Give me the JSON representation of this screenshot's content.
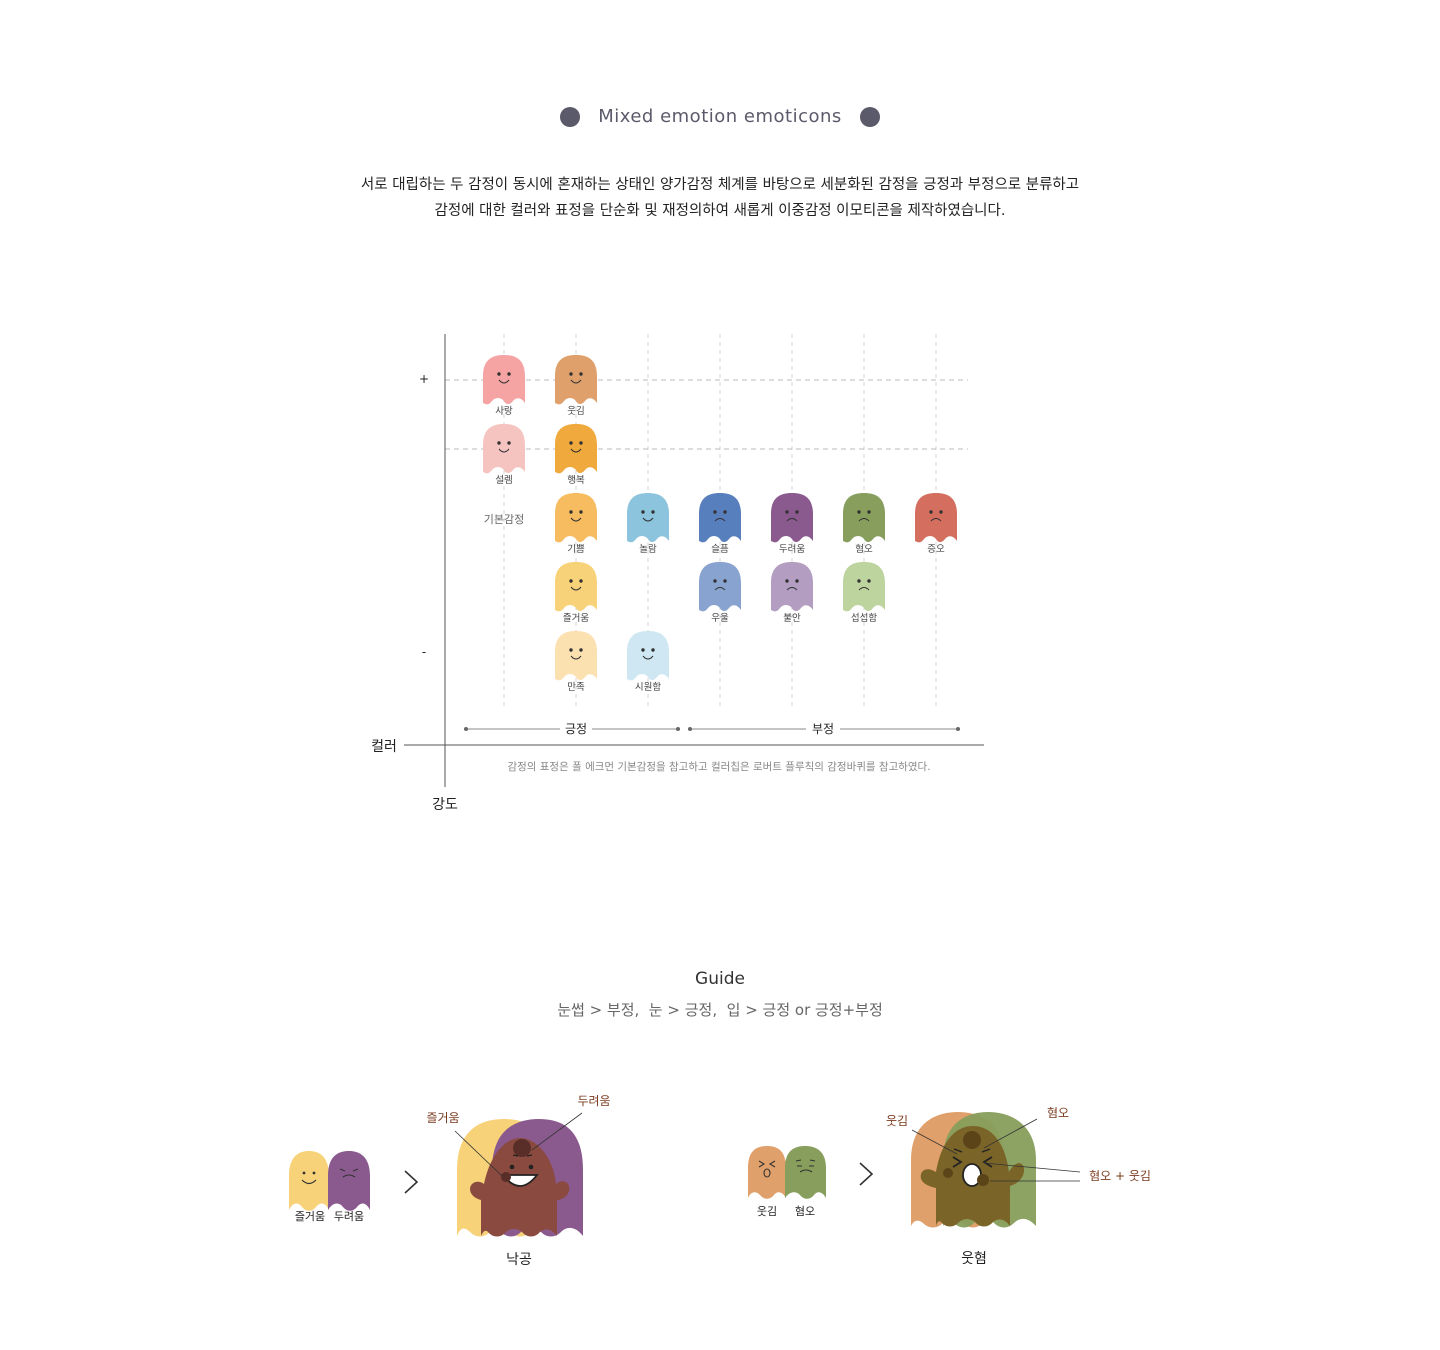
{
  "header": {
    "title": "Mixed emotion emoticons",
    "dot_color": "#5b5a6a"
  },
  "description": {
    "line1": "서로 대립하는 두 감정이 동시에 혼재하는 상태인 양가감정 체계를 바탕으로 세분화된 감정을 긍정과 부정으로 분류하고",
    "line2": "감정에 대한 컬러와 표정을 단순화 및 재정의하여 새롭게 이중감정 이모티콘을 제작하였습니다."
  },
  "chart": {
    "y_plus": "+",
    "y_minus": "-",
    "y_label": "강도",
    "x_label": "컬러",
    "basic_emotion_label": "기본감정",
    "positive_label": "긍정",
    "negative_label": "부정",
    "footnote": "감정의 표정은 폴 에크먼 기본감정을 참고하고 컬러칩은 로버트 플루칙의 감정바퀴를 참고하였다.",
    "emotions": [
      {
        "label": "사랑",
        "color": "#f5a3a3",
        "col": 0,
        "row": 0
      },
      {
        "label": "웃김",
        "color": "#e0a06b",
        "col": 1,
        "row": 0
      },
      {
        "label": "설렘",
        "color": "#f5c4c0",
        "col": 0,
        "row": 1
      },
      {
        "label": "행복",
        "color": "#f0a93d",
        "col": 1,
        "row": 1
      },
      {
        "label": "기쁨",
        "color": "#f7bb60",
        "col": 1,
        "row": 2
      },
      {
        "label": "놀람",
        "color": "#8dc4dd",
        "col": 2,
        "row": 2
      },
      {
        "label": "슬픔",
        "color": "#587fbd",
        "col": 3,
        "row": 2
      },
      {
        "label": "두려움",
        "color": "#8a5a8f",
        "col": 4,
        "row": 2
      },
      {
        "label": "혐오",
        "color": "#879e5c",
        "col": 5,
        "row": 2
      },
      {
        "label": "증오",
        "color": "#d46e5e",
        "col": 6,
        "row": 2
      },
      {
        "label": "즐거움",
        "color": "#f7d279",
        "col": 1,
        "row": 3
      },
      {
        "label": "우울",
        "color": "#88a3cf",
        "col": 3,
        "row": 3
      },
      {
        "label": "불안",
        "color": "#b39dc0",
        "col": 4,
        "row": 3
      },
      {
        "label": "섭섭함",
        "color": "#bdd49e",
        "col": 5,
        "row": 3
      },
      {
        "label": "만족",
        "color": "#fbe0b0",
        "col": 1,
        "row": 4
      },
      {
        "label": "시원함",
        "color": "#cfe7f2",
        "col": 2,
        "row": 4
      }
    ]
  },
  "guide": {
    "title": "Guide",
    "text": "눈썹 > 부정,  눈 > 긍정,  입 > 긍정 or 긍정+부정"
  },
  "example1": {
    "pair_labels": [
      "즐거움",
      "두려움"
    ],
    "colors": [
      "#f7d279",
      "#8a5a8f"
    ],
    "mixed_color": "#8a4a3f",
    "callout_left": "즐거움",
    "callout_right": "두려움",
    "result": "낙공"
  },
  "example2": {
    "pair_labels": [
      "웃김",
      "혐오"
    ],
    "colors": [
      "#e0a06b",
      "#879e5c"
    ],
    "mixed_color": "#7a6428",
    "callout_left": "웃김",
    "callout_right": "혐오",
    "callout_mix": "혐오 + 웃김",
    "result": "웃혐"
  },
  "arrow_icon": "chevron-right-icon"
}
